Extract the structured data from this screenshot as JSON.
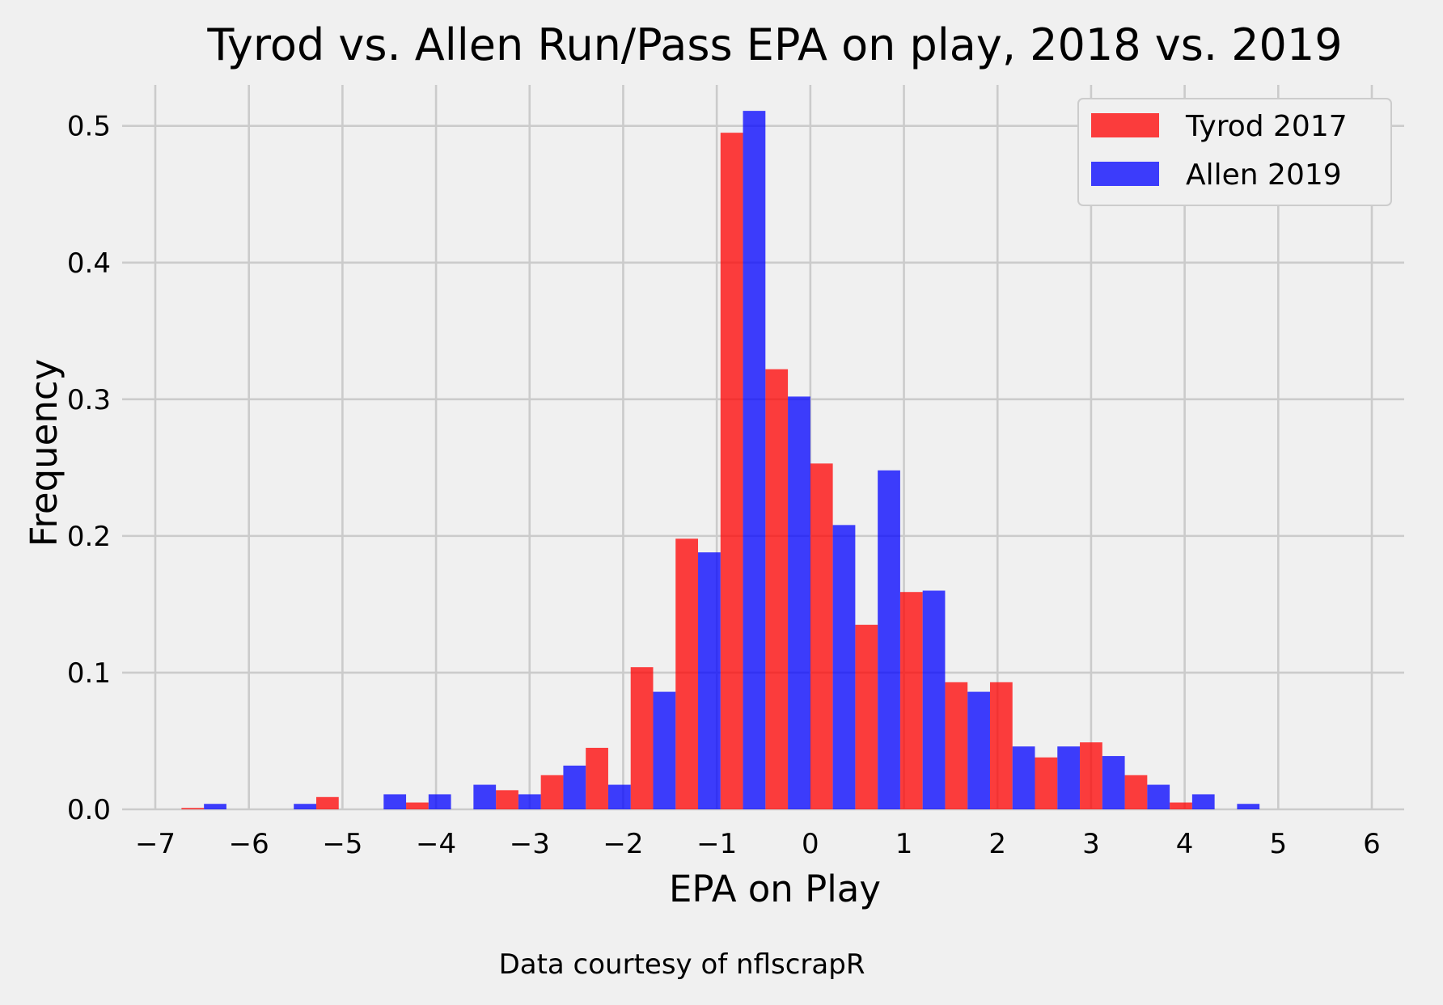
{
  "chart_data": {
    "type": "bar",
    "title": "Tyrod vs. Allen Run/Pass EPA on play, 2018 vs. 2019",
    "xlabel": "EPA on Play",
    "ylabel": "Frequency",
    "caption": "Data courtesy of nflscrapR",
    "xlim": [
      -7,
      6
    ],
    "ylim": [
      0,
      0.53
    ],
    "xticks": [
      -7,
      -6,
      -5,
      -4,
      -3,
      -2,
      -1,
      0,
      1,
      2,
      3,
      4,
      5,
      6
    ],
    "xtick_labels": [
      "−7",
      "−6",
      "−5",
      "−4",
      "−3",
      "−2",
      "−1",
      "0",
      "1",
      "2",
      "3",
      "4",
      "5",
      "6"
    ],
    "yticks": [
      0,
      0.1,
      0.2,
      0.3,
      0.4,
      0.5
    ],
    "ytick_labels": [
      "0.0",
      "0.1",
      "0.2",
      "0.3",
      "0.4",
      "0.5"
    ],
    "grid": true,
    "legend_position": "top-right",
    "bin_width": 0.48,
    "bin_starts": [
      -6.72,
      -6.24,
      -5.76,
      -5.28,
      -4.8,
      -4.32,
      -3.84,
      -3.36,
      -2.88,
      -2.4,
      -1.92,
      -1.44,
      -0.96,
      -0.48,
      0.0,
      0.48,
      0.96,
      1.44,
      1.92,
      2.4,
      2.88,
      3.36,
      3.84,
      4.32
    ],
    "series": [
      {
        "name": "Tyrod 2017",
        "color": "#ff0000",
        "values": [
          0.001,
          0,
          0,
          0.009,
          0,
          0.005,
          0,
          0.014,
          0.025,
          0.045,
          0.104,
          0.198,
          0.495,
          0.322,
          0.253,
          0.135,
          0.159,
          0.093,
          0.093,
          0.038,
          0.049,
          0.025,
          0.005,
          0
        ]
      },
      {
        "name": "Allen 2019",
        "color": "#0000ff",
        "values": [
          0.004,
          0,
          0.004,
          0,
          0.011,
          0.011,
          0.018,
          0.011,
          0.032,
          0.018,
          0.086,
          0.188,
          0.511,
          0.302,
          0.208,
          0.248,
          0.16,
          0.086,
          0.046,
          0.046,
          0.039,
          0.018,
          0.011,
          0.004
        ]
      }
    ]
  }
}
